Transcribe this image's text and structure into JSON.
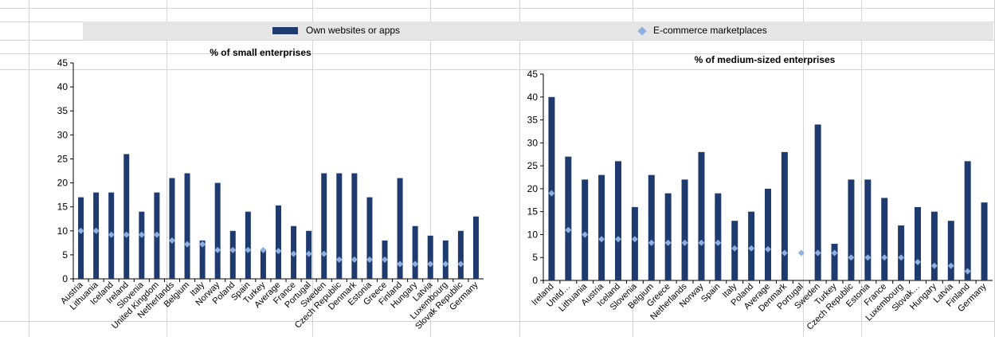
{
  "legend": {
    "own": "Own websites or apps",
    "ecom": "E-commerce marketplaces"
  },
  "colors": {
    "bar": "#1f3a6e",
    "marker": "#8fb0de",
    "panel": "#e6e6e6"
  },
  "chart_data": [
    {
      "type": "bar",
      "title": "% of small enterprises",
      "ylim": [
        0,
        45
      ],
      "yticks": [
        0,
        5,
        10,
        15,
        20,
        25,
        30,
        35,
        40,
        45
      ],
      "categories": [
        "Austria",
        "Lithuania",
        "Iceland",
        "Ireland",
        "Slovenia",
        "United Kingdom",
        "Netherlands",
        "Belgium",
        "Italy",
        "Norway",
        "Poland",
        "Spain",
        "Turkey",
        "Average",
        "France",
        "Portugal",
        "Sweden",
        "Czech Republic",
        "Denmark",
        "Estonia",
        "Greece",
        "Finland",
        "Hungary",
        "Latvia",
        "Luxembourg",
        "Slovak Republic",
        "Germany"
      ],
      "series": [
        {
          "name": "Own websites or apps",
          "type": "bar",
          "values": [
            17,
            18,
            18,
            26,
            14,
            18,
            21,
            22,
            8,
            20,
            10,
            14,
            6,
            15.3,
            11,
            10,
            22,
            22,
            22,
            17,
            8,
            21,
            11,
            9,
            8,
            10,
            13
          ]
        },
        {
          "name": "E-commerce marketplaces",
          "type": "marker",
          "values": [
            10,
            10,
            9.2,
            9.2,
            9.2,
            9.2,
            8,
            7.2,
            7.2,
            6,
            6,
            6,
            6,
            5.8,
            5.2,
            5.2,
            5.2,
            4,
            4,
            4,
            4,
            3.1,
            3.1,
            3.1,
            3.1,
            3.1,
            null
          ]
        }
      ]
    },
    {
      "type": "bar",
      "title": "% of medium-sized enterprises",
      "ylim": [
        0,
        45
      ],
      "yticks": [
        0,
        5,
        10,
        15,
        20,
        25,
        30,
        35,
        40,
        45
      ],
      "categories": [
        "Ireland",
        "Unitd…",
        "Lithuania",
        "Austria",
        "Iceland",
        "Slovenia",
        "Belgium",
        "Greece",
        "Netherlands",
        "Norway",
        "Spain",
        "Italy",
        "Poland",
        "Average",
        "Denmark",
        "Portugal",
        "Sweden",
        "Turkey",
        "Czech Republic",
        "Estonia",
        "France",
        "Luxembourg",
        "Slovak…",
        "Hungary",
        "Latvia",
        "Finland",
        "Germany"
      ],
      "series": [
        {
          "name": "Own websites or apps",
          "type": "bar",
          "values": [
            40,
            27,
            22,
            23,
            26,
            16,
            23,
            19,
            22,
            28,
            19,
            13,
            15,
            20,
            28,
            null,
            34,
            8,
            22,
            22,
            18,
            12,
            16,
            15,
            13,
            26,
            17
          ]
        },
        {
          "name": "E-commerce marketplaces",
          "type": "marker",
          "values": [
            19,
            11,
            10,
            9,
            9,
            9,
            8.2,
            8.2,
            8.2,
            8.2,
            8.2,
            7,
            7,
            6.8,
            6,
            6,
            6,
            6,
            5,
            5,
            5,
            5,
            4,
            3.2,
            3.2,
            2,
            null
          ]
        }
      ]
    }
  ]
}
